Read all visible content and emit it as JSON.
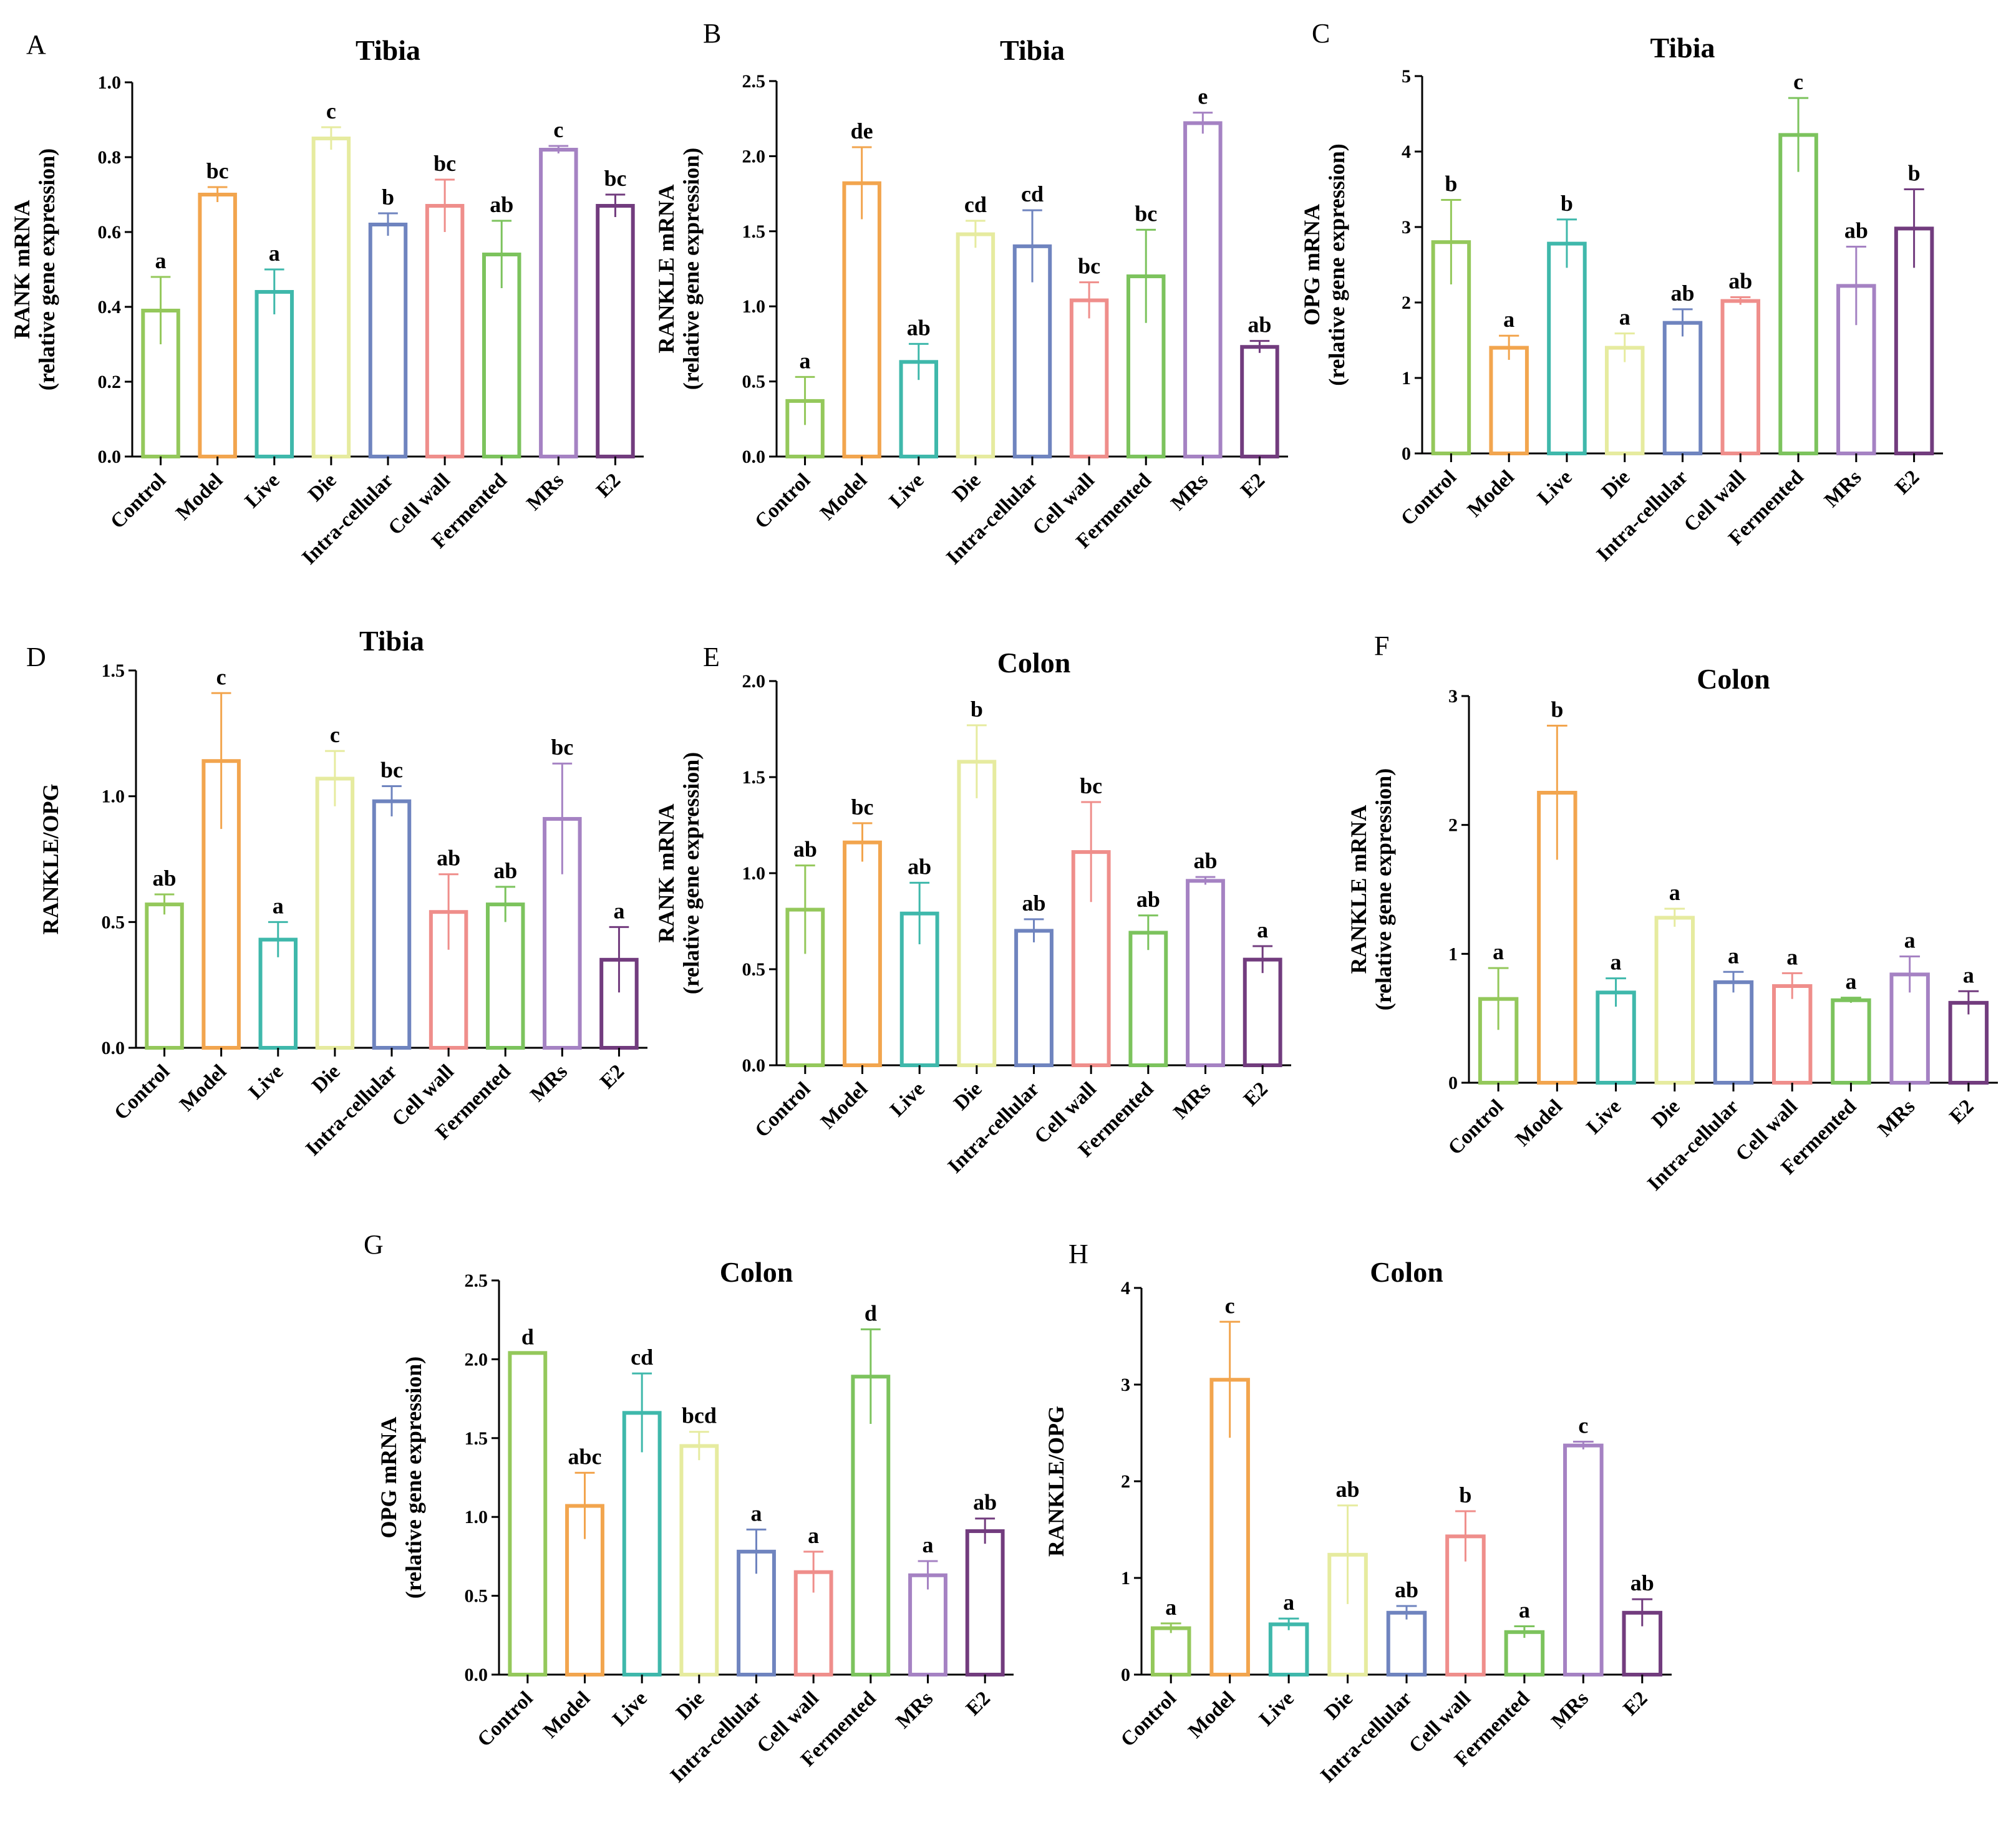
{
  "chart_data": [
    {
      "panel": "A",
      "type": "bar",
      "title": "Tibia",
      "ylabel_lines": [
        "RANK mRNA",
        "(relative gene expression)"
      ],
      "ylim": [
        0,
        1.0
      ],
      "yticks": [
        "0.0",
        "0.2",
        "0.4",
        "0.6",
        "0.8",
        "1.0"
      ],
      "categories": [
        "Control",
        "Model",
        "Live",
        "Die",
        "Intra-cellular",
        "Cell wall",
        "Fermented",
        "MRs",
        "E2"
      ],
      "values": [
        0.39,
        0.7,
        0.44,
        0.85,
        0.62,
        0.67,
        0.54,
        0.82,
        0.67
      ],
      "errors": [
        0.09,
        0.02,
        0.06,
        0.03,
        0.03,
        0.07,
        0.09,
        0.01,
        0.03
      ],
      "labels": [
        "a",
        "bc",
        "a",
        "c",
        "b",
        "bc",
        "ab",
        "c",
        "bc"
      ]
    },
    {
      "panel": "B",
      "type": "bar",
      "title": "Tibia",
      "ylabel_lines": [
        "RANKLE mRNA",
        "(relative gene expression)"
      ],
      "ylim": [
        0,
        2.5
      ],
      "yticks": [
        "0.0",
        "0.5",
        "1.0",
        "1.5",
        "2.0",
        "2.5"
      ],
      "categories": [
        "Control",
        "Model",
        "Live",
        "Die",
        "Intra-cellular",
        "Cell wall",
        "Fermented",
        "MRs",
        "E2"
      ],
      "values": [
        0.37,
        1.82,
        0.63,
        1.48,
        1.4,
        1.04,
        1.2,
        2.22,
        0.73
      ],
      "errors": [
        0.16,
        0.24,
        0.12,
        0.09,
        0.24,
        0.12,
        0.31,
        0.07,
        0.04
      ],
      "labels": [
        "a",
        "de",
        "ab",
        "cd",
        "cd",
        "bc",
        "bc",
        "e",
        "ab"
      ]
    },
    {
      "panel": "C",
      "type": "bar",
      "title": "Tibia",
      "ylabel_lines": [
        "OPG mRNA",
        "(relative gene expression)"
      ],
      "ylim": [
        0,
        5
      ],
      "yticks": [
        "0",
        "1",
        "2",
        "3",
        "4",
        "5"
      ],
      "categories": [
        "Control",
        "Model",
        "Live",
        "Die",
        "Intra-cellular",
        "Cell wall",
        "Fermented",
        "MRs",
        "E2"
      ],
      "values": [
        2.8,
        1.4,
        2.78,
        1.4,
        1.73,
        2.02,
        4.22,
        2.22,
        2.98
      ],
      "errors": [
        0.56,
        0.16,
        0.32,
        0.19,
        0.18,
        0.05,
        0.49,
        0.52,
        0.52
      ],
      "labels": [
        "b",
        "a",
        "b",
        "a",
        "ab",
        "ab",
        "c",
        "ab",
        "b"
      ]
    },
    {
      "panel": "D",
      "type": "bar",
      "title": "Tibia",
      "ylabel_lines": [
        "RANKLE/OPG"
      ],
      "ylim": [
        0,
        1.5
      ],
      "yticks": [
        "0.0",
        "0.5",
        "1.0",
        "1.5"
      ],
      "categories": [
        "Control",
        "Model",
        "Live",
        "Die",
        "Intra-cellular",
        "Cell wall",
        "Fermented",
        "MRs",
        "E2"
      ],
      "values": [
        0.57,
        1.14,
        0.43,
        1.07,
        0.98,
        0.54,
        0.57,
        0.91,
        0.35
      ],
      "errors": [
        0.04,
        0.27,
        0.07,
        0.11,
        0.06,
        0.15,
        0.07,
        0.22,
        0.13
      ],
      "labels": [
        "ab",
        "c",
        "a",
        "c",
        "bc",
        "ab",
        "ab",
        "bc",
        "a"
      ]
    },
    {
      "panel": "E",
      "type": "bar",
      "title": "Colon",
      "ylabel_lines": [
        "RANK mRNA",
        "(relative gene expression)"
      ],
      "ylim": [
        0,
        2.0
      ],
      "yticks": [
        "0.0",
        "0.5",
        "1.0",
        "1.5",
        "2.0"
      ],
      "categories": [
        "Control",
        "Model",
        "Live",
        "Die",
        "Intra-cellular",
        "Cell wall",
        "Fermented",
        "MRs",
        "E2"
      ],
      "values": [
        0.81,
        1.16,
        0.79,
        1.58,
        0.7,
        1.11,
        0.69,
        0.96,
        0.55
      ],
      "errors": [
        0.23,
        0.1,
        0.16,
        0.19,
        0.06,
        0.26,
        0.09,
        0.02,
        0.07
      ],
      "labels": [
        "ab",
        "bc",
        "ab",
        "b",
        "ab",
        "bc",
        "ab",
        "ab",
        "a"
      ]
    },
    {
      "panel": "F",
      "type": "bar",
      "title": "Colon",
      "ylabel_lines": [
        "RANKLE mRNA",
        "(relative gene expression)"
      ],
      "ylim": [
        0,
        3
      ],
      "yticks": [
        "0",
        "1",
        "2",
        "3"
      ],
      "categories": [
        "Control",
        "Model",
        "Live",
        "Die",
        "Intra-cellular",
        "Cell wall",
        "Fermented",
        "MRs",
        "E2"
      ],
      "values": [
        0.65,
        2.25,
        0.7,
        1.28,
        0.78,
        0.75,
        0.64,
        0.84,
        0.62
      ],
      "errors": [
        0.24,
        0.52,
        0.11,
        0.07,
        0.08,
        0.1,
        0.02,
        0.14,
        0.09
      ],
      "labels": [
        "a",
        "b",
        "a",
        "a",
        "a",
        "a",
        "a",
        "a",
        "a"
      ]
    },
    {
      "panel": "G",
      "type": "bar",
      "title": "Colon",
      "ylabel_lines": [
        "OPG mRNA",
        "(relative gene expression)"
      ],
      "ylim": [
        0,
        2.5
      ],
      "yticks": [
        "0.0",
        "0.5",
        "1.0",
        "1.5",
        "2.0",
        "2.5"
      ],
      "categories": [
        "Control",
        "Model",
        "Live",
        "Die",
        "Intra-cellular",
        "Cell wall",
        "Fermented",
        "MRs",
        "E2"
      ],
      "values": [
        2.04,
        1.07,
        1.66,
        1.45,
        0.78,
        0.65,
        1.89,
        0.63,
        0.91
      ],
      "errors": [
        0.0,
        0.21,
        0.25,
        0.09,
        0.14,
        0.13,
        0.3,
        0.09,
        0.08
      ],
      "labels": [
        "d",
        "abc",
        "cd",
        "bcd",
        "a",
        "a",
        "d",
        "a",
        "ab"
      ]
    },
    {
      "panel": "H",
      "type": "bar",
      "title": "Colon",
      "ylabel_lines": [
        "RANKLE/OPG"
      ],
      "ylim": [
        0,
        4
      ],
      "yticks": [
        "0",
        "1",
        "2",
        "3",
        "4"
      ],
      "categories": [
        "Control",
        "Model",
        "Live",
        "Die",
        "Intra-cellular",
        "Cell wall",
        "Fermented",
        "MRs",
        "E2"
      ],
      "values": [
        0.48,
        3.05,
        0.52,
        1.24,
        0.64,
        1.43,
        0.44,
        2.37,
        0.64
      ],
      "errors": [
        0.05,
        0.6,
        0.06,
        0.51,
        0.07,
        0.26,
        0.06,
        0.04,
        0.14
      ],
      "labels": [
        "a",
        "c",
        "a",
        "ab",
        "ab",
        "b",
        "a",
        "c",
        "ab"
      ]
    }
  ],
  "colors": {
    "bars": [
      "#94c85b",
      "#f2a54e",
      "#3fb8ab",
      "#e6eb9f",
      "#6f84bf",
      "#ef8e8b",
      "#7cc35d",
      "#a582c3",
      "#723c7e"
    ],
    "axis": "#000000"
  }
}
